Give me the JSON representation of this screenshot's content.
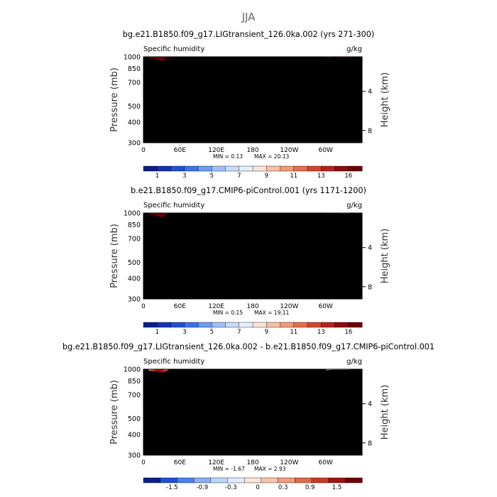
{
  "season_title": "JJA",
  "panels": [
    {
      "title": "bg.e21.B1850.f09_g17.LIGtransient_126.0ka.002 (yrs 271-300)",
      "left_label": "Specific humidity",
      "units": "g/kg",
      "min_label": "MIN =    0.13",
      "max_label": "MAX =   20.13",
      "colorbar_labels": [
        "1",
        "3",
        "5",
        "7",
        "9",
        "11",
        "13",
        "16"
      ],
      "kind": "full"
    },
    {
      "title": "b.e21.B1850.f09_g17.CMIP6-piControl.001 (yrs 1171-1200)",
      "left_label": "Specific humidity",
      "units": "g/kg",
      "min_label": "MIN =    0.15",
      "max_label": "MAX =   19.11",
      "colorbar_labels": [
        "1",
        "3",
        "5",
        "7",
        "9",
        "11",
        "13",
        "16"
      ],
      "kind": "full"
    },
    {
      "title": "bg.e21.B1850.f09_g17.LIGtransient_126.0ka.002 - b.e21.B1850.f09_g17.CMIP6-piControl.001",
      "left_label": "Specific humidity",
      "units": "g/kg",
      "min_label": "MIN =   -1.67",
      "max_label": "MAX =    2.93",
      "colorbar_labels": [
        "-1.5",
        "-0.9",
        "-0.3",
        "0",
        "0.3",
        "0.9",
        "1.5"
      ],
      "kind": "diff"
    }
  ],
  "axes": {
    "ylabel": "Pressure (mb)",
    "y2label": "Height (km)",
    "pressure_ticks": [
      "300",
      "400",
      "500",
      "700",
      "850",
      "1000"
    ],
    "height_ticks": [
      "8",
      "4"
    ],
    "lon_ticks": [
      "0",
      "60E",
      "120E",
      "180",
      "120W",
      "60W"
    ]
  },
  "colors": {
    "full": [
      "#0a1f8c",
      "#1431b4",
      "#1f4fd8",
      "#3a74e8",
      "#6a9cf2",
      "#9ec0f7",
      "#c8dcfa",
      "#e6eefc",
      "#fbe3d6",
      "#f7c0a4",
      "#f09a78",
      "#e56e4e",
      "#d3452f",
      "#b9211c",
      "#8f0a10",
      "#6a0008"
    ],
    "diff": [
      "#0a1f8c",
      "#1f4fd8",
      "#4a82ec",
      "#86b0f4",
      "#bcd4f9",
      "#e2ecfc",
      "#fbe4d8",
      "#f7c3a8",
      "#f09c7c",
      "#e06a4a",
      "#c83a26",
      "#9e1410",
      "#6a0008"
    ]
  },
  "chart_data": [
    {
      "type": "heatmap",
      "title": "bg.e21.B1850.f09_g17.LIGtransient_126.0ka.002 (yrs 271-300)",
      "variable": "Specific humidity",
      "units": "g/kg",
      "x_axis": "longitude",
      "y_axis": "pressure (mb)",
      "xlim": [
        0,
        360
      ],
      "ylim": [
        1000,
        300
      ],
      "min": 0.13,
      "max": 20.13,
      "contour_levels": [
        1,
        2,
        3,
        4,
        5,
        6,
        7,
        8,
        9,
        10,
        11,
        12,
        13,
        14,
        16
      ]
    },
    {
      "type": "heatmap",
      "title": "b.e21.B1850.f09_g17.CMIP6-piControl.001 (yrs 1171-1200)",
      "variable": "Specific humidity",
      "units": "g/kg",
      "x_axis": "longitude",
      "y_axis": "pressure (mb)",
      "xlim": [
        0,
        360
      ],
      "ylim": [
        1000,
        300
      ],
      "min": 0.15,
      "max": 19.11,
      "contour_levels": [
        1,
        2,
        3,
        4,
        5,
        6,
        7,
        8,
        9,
        10,
        11,
        12,
        13,
        14,
        16
      ]
    },
    {
      "type": "heatmap",
      "title": "bg.e21.B1850.f09_g17.LIGtransient_126.0ka.002 - b.e21.B1850.f09_g17.CMIP6-piControl.001",
      "variable": "Specific humidity",
      "units": "g/kg",
      "x_axis": "longitude",
      "y_axis": "pressure (mb)",
      "xlim": [
        0,
        360
      ],
      "ylim": [
        1000,
        300
      ],
      "min": -1.67,
      "max": 2.93,
      "contour_levels": [
        -1.5,
        -1.2,
        -0.9,
        -0.6,
        -0.3,
        -0.1,
        0,
        0.1,
        0.3,
        0.6,
        0.9,
        1.2,
        1.5
      ]
    }
  ]
}
